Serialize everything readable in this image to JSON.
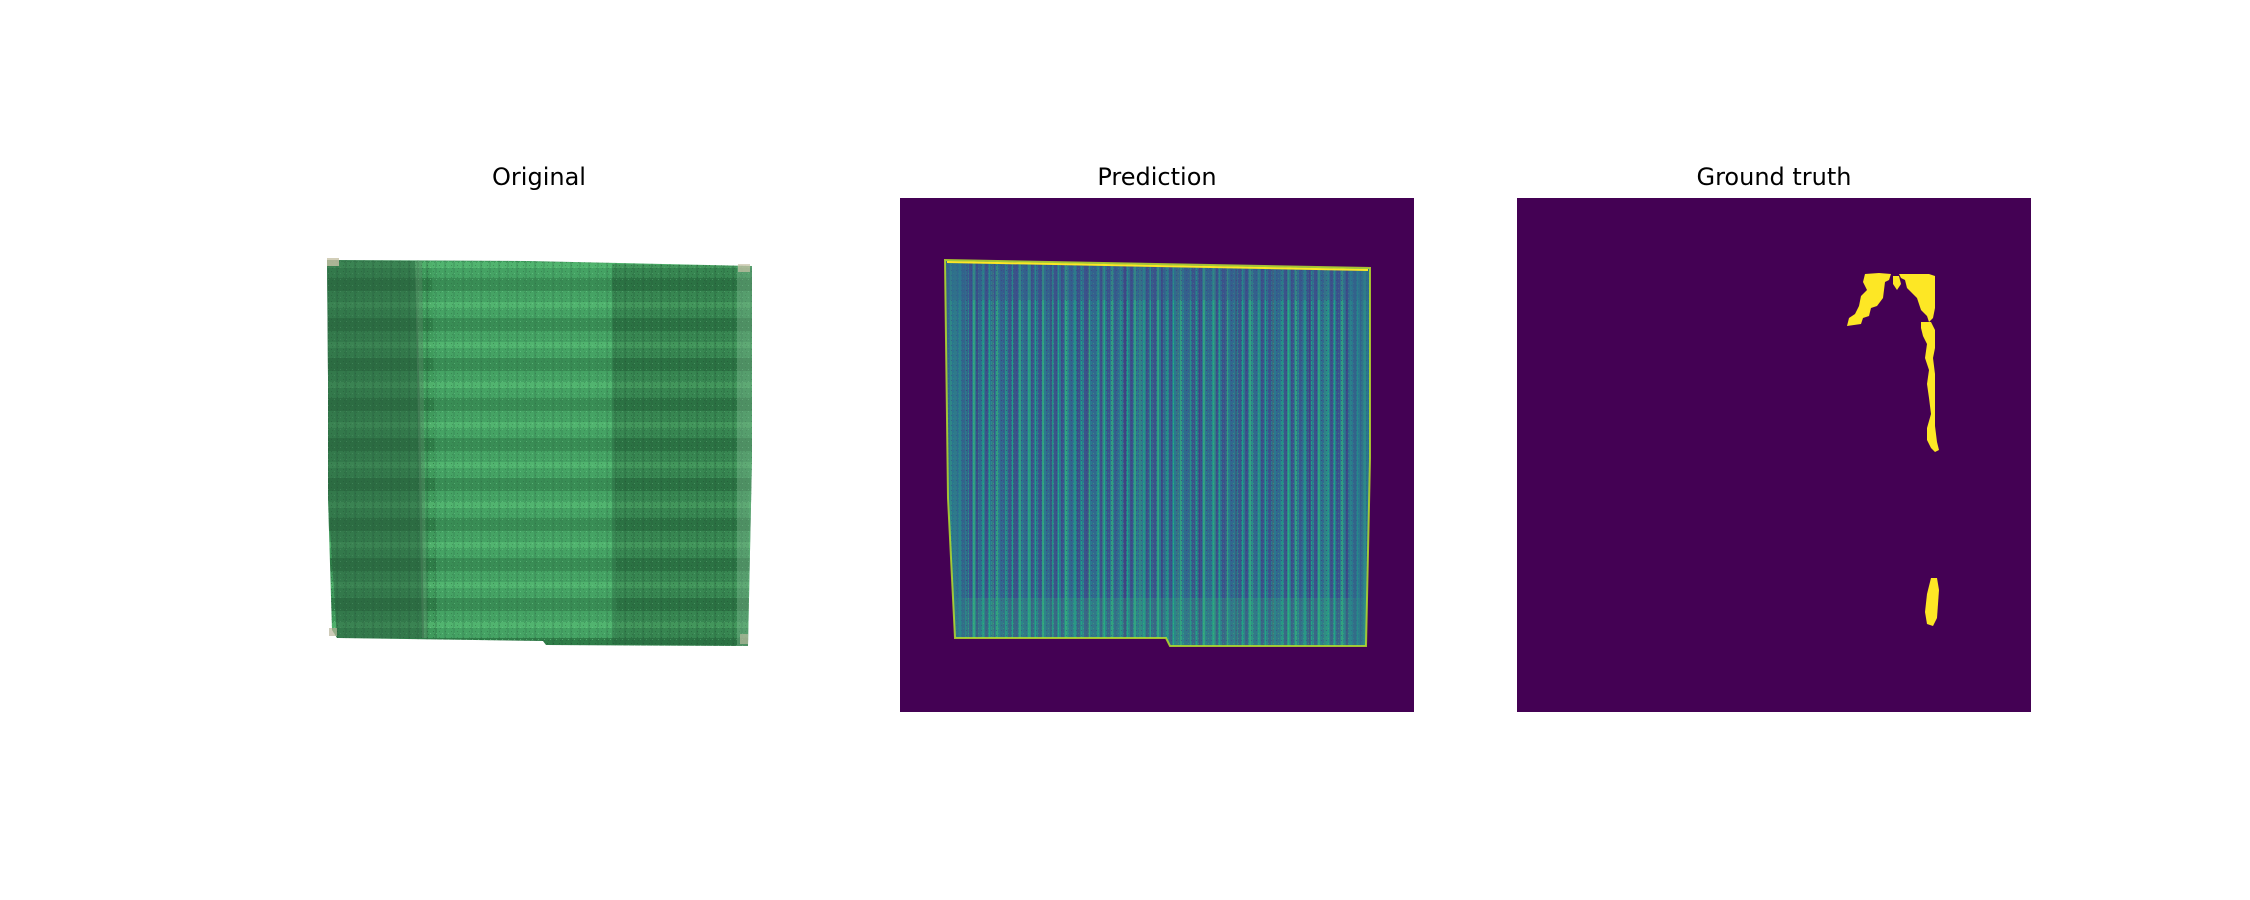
{
  "figure": {
    "panels": [
      {
        "title": "Original"
      },
      {
        "title": "Prediction"
      },
      {
        "title": "Ground truth"
      }
    ]
  },
  "colors": {
    "background": "#ffffff",
    "mask_background": "#440154",
    "mask_foreground": "#fde725",
    "prediction_mid": "#21918c",
    "prediction_low": "#3b528b",
    "field_green": "#2e7d4a"
  }
}
